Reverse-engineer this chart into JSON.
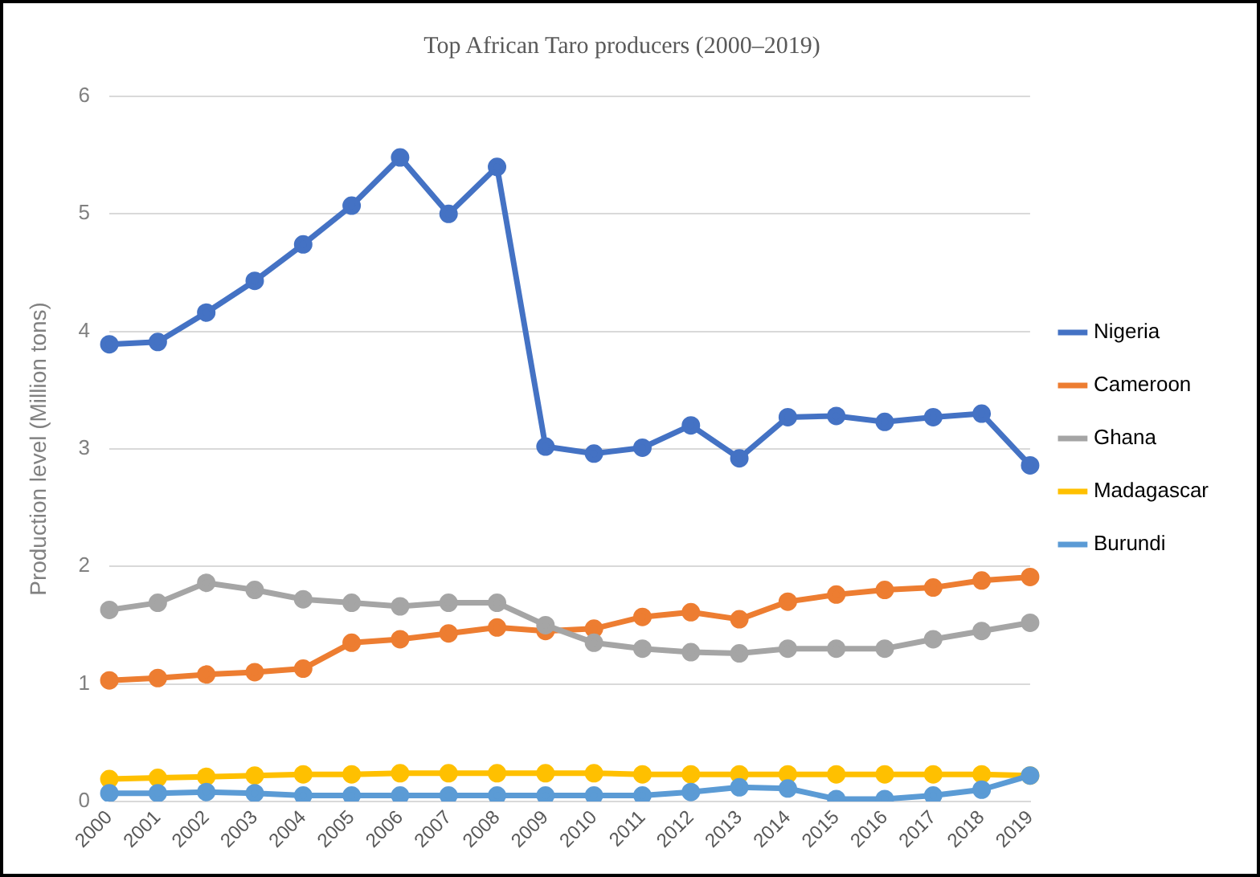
{
  "chart_data": {
    "type": "line",
    "title": "Top African Taro producers (2000–2019)",
    "ylabel": "Production level (Million tons)",
    "categories": [
      "2000",
      "2001",
      "2002",
      "2003",
      "2004",
      "2005",
      "2006",
      "2007",
      "2008",
      "2009",
      "2010",
      "2011",
      "2012",
      "2013",
      "2014",
      "2015",
      "2016",
      "2017",
      "2018",
      "2019"
    ],
    "series": [
      {
        "name": "Nigeria",
        "color": "#4472c4",
        "values": [
          3.89,
          3.91,
          4.16,
          4.43,
          4.74,
          5.07,
          5.48,
          5.0,
          5.4,
          3.02,
          2.96,
          3.01,
          3.2,
          2.92,
          3.27,
          3.28,
          3.23,
          3.27,
          3.3,
          2.86
        ]
      },
      {
        "name": "Cameroon",
        "color": "#ed7d31",
        "values": [
          1.03,
          1.05,
          1.08,
          1.1,
          1.13,
          1.35,
          1.38,
          1.43,
          1.48,
          1.45,
          1.47,
          1.57,
          1.61,
          1.55,
          1.7,
          1.76,
          1.8,
          1.82,
          1.88,
          1.91
        ]
      },
      {
        "name": "Ghana",
        "color": "#a5a5a5",
        "values": [
          1.63,
          1.69,
          1.86,
          1.8,
          1.72,
          1.69,
          1.66,
          1.69,
          1.69,
          1.5,
          1.35,
          1.3,
          1.27,
          1.26,
          1.3,
          1.3,
          1.3,
          1.38,
          1.45,
          1.52
        ]
      },
      {
        "name": "Madagascar",
        "color": "#ffc000",
        "values": [
          0.19,
          0.2,
          0.21,
          0.22,
          0.23,
          0.23,
          0.24,
          0.24,
          0.24,
          0.24,
          0.24,
          0.23,
          0.23,
          0.23,
          0.23,
          0.23,
          0.23,
          0.23,
          0.23,
          0.22
        ]
      },
      {
        "name": "Burundi",
        "color": "#5b9bd5",
        "values": [
          0.07,
          0.07,
          0.08,
          0.07,
          0.05,
          0.05,
          0.05,
          0.05,
          0.05,
          0.05,
          0.05,
          0.05,
          0.08,
          0.12,
          0.11,
          0.02,
          0.02,
          0.05,
          0.1,
          0.22
        ]
      }
    ],
    "ylim": [
      0,
      6
    ],
    "yticks": [
      0,
      1,
      2,
      3,
      4,
      5,
      6
    ],
    "grid": "y",
    "legend": "right",
    "marker": "circle",
    "line_style": "solid"
  }
}
